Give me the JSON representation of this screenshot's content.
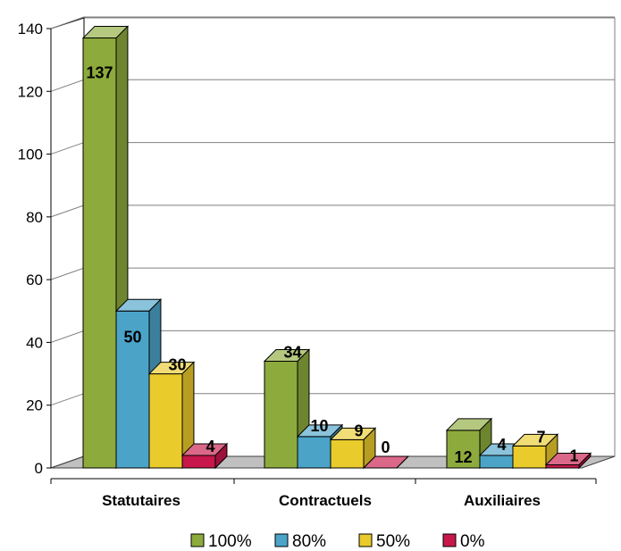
{
  "chart_data": {
    "type": "bar",
    "categories": [
      "Statutaires",
      "Contractuels",
      "Auxiliaires"
    ],
    "series": [
      {
        "name": "100%",
        "values": [
          137,
          34,
          12
        ],
        "color": "#8DAA3C"
      },
      {
        "name": "80%",
        "values": [
          50,
          10,
          4
        ],
        "color": "#4BA3C8"
      },
      {
        "name": "50%",
        "values": [
          30,
          9,
          7
        ],
        "color": "#EACB2C"
      },
      {
        "name": "0%",
        "values": [
          4,
          0,
          1
        ],
        "color": "#C8174A"
      }
    ],
    "yticks": [
      "0",
      "20",
      "40",
      "60",
      "80",
      "100",
      "120",
      "140"
    ],
    "ylim": [
      0,
      140
    ],
    "grid": true,
    "legend_position": "bottom",
    "colors": {
      "floor": "#C0C0C0",
      "wall": "#FFFFFF",
      "grid": "#808080",
      "outline": "#000000"
    }
  }
}
